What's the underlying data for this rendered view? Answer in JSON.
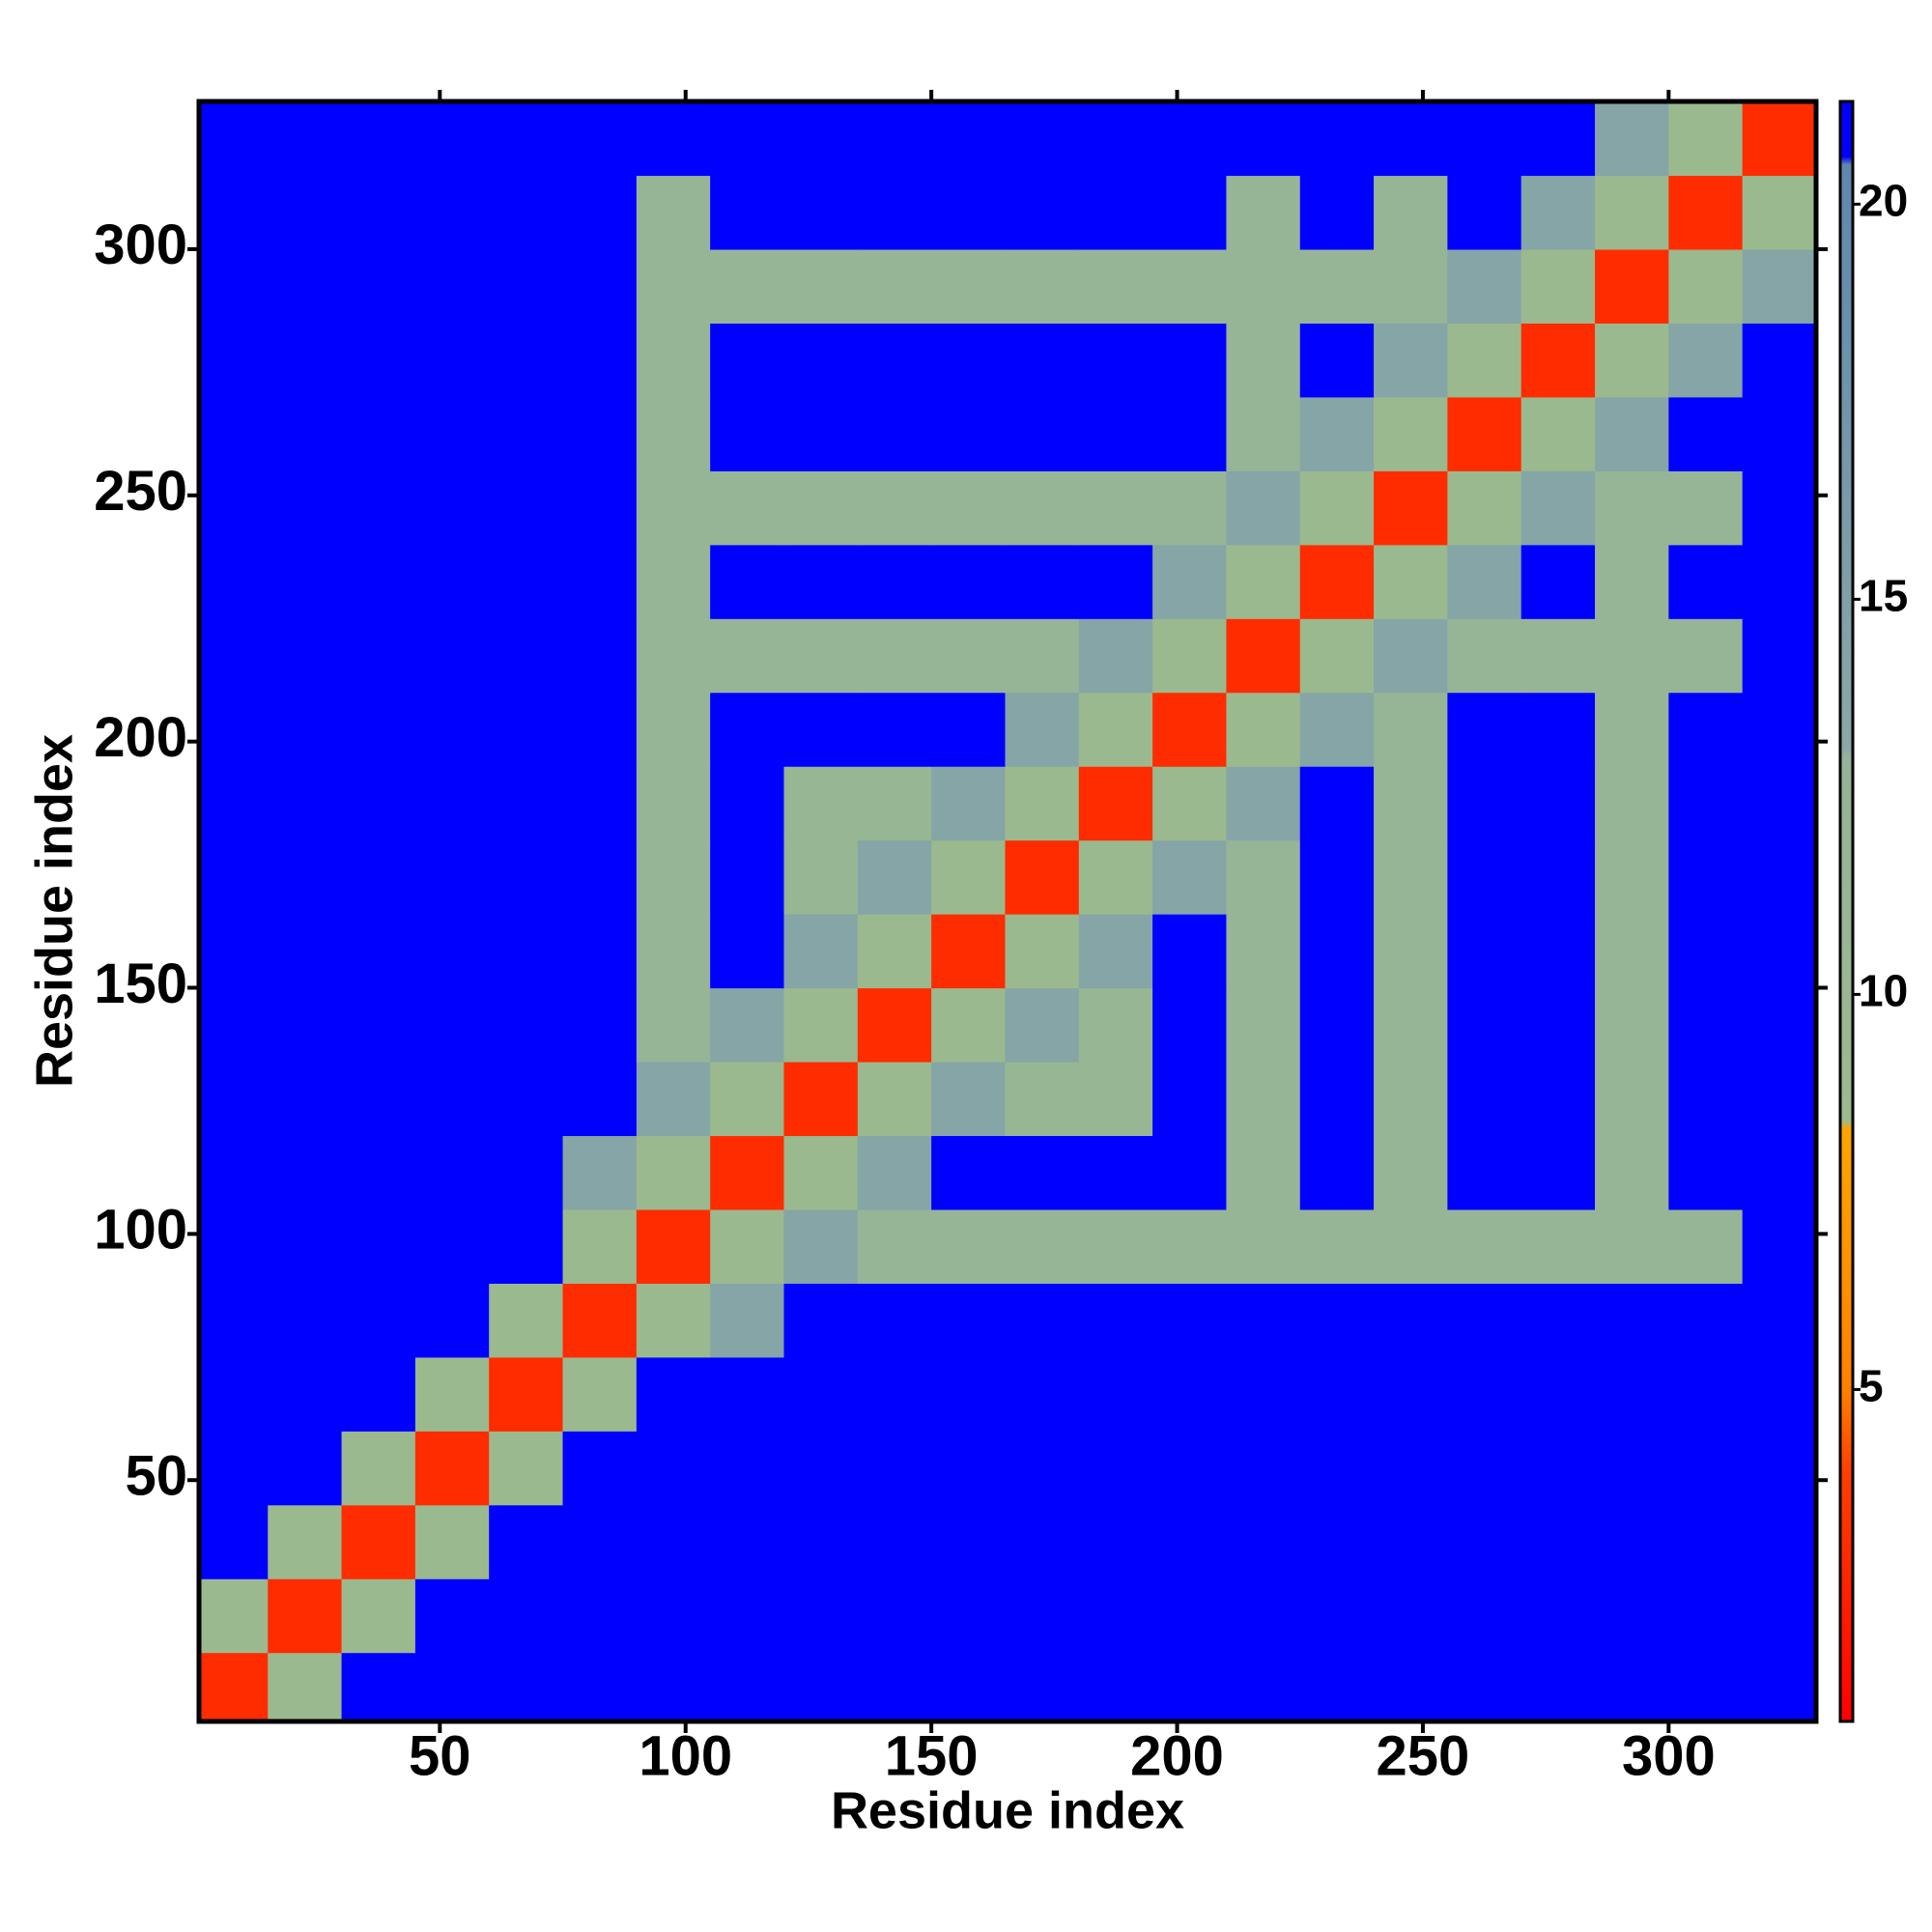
{
  "chart_data": {
    "type": "heatmap",
    "x_label": "Residue index",
    "y_label": "Residue index",
    "x_edges": [
      0,
      15,
      30,
      45,
      60,
      75,
      90,
      105,
      120,
      135,
      150,
      165,
      180,
      195,
      210,
      225,
      240,
      255,
      270,
      285,
      300,
      315,
      330
    ],
    "y_edges": [
      0,
      15,
      30,
      45,
      60,
      75,
      90,
      105,
      120,
      135,
      150,
      165,
      180,
      195,
      210,
      225,
      240,
      255,
      270,
      285,
      300,
      315,
      330
    ],
    "values": [
      [
        3,
        9,
        21,
        21,
        21,
        21,
        21,
        21,
        21,
        21,
        21,
        21,
        21,
        21,
        21,
        21,
        21,
        21,
        21,
        21,
        21,
        21
      ],
      [
        9,
        3,
        9,
        21,
        21,
        21,
        21,
        21,
        21,
        21,
        21,
        21,
        21,
        21,
        21,
        21,
        21,
        21,
        21,
        21,
        21,
        21
      ],
      [
        21,
        9,
        3,
        9,
        21,
        21,
        21,
        21,
        21,
        21,
        21,
        21,
        21,
        21,
        21,
        21,
        21,
        21,
        21,
        21,
        21,
        21
      ],
      [
        21,
        21,
        9,
        3,
        9,
        21,
        21,
        21,
        21,
        21,
        21,
        21,
        21,
        21,
        21,
        21,
        21,
        21,
        21,
        21,
        21,
        21
      ],
      [
        21,
        21,
        21,
        9,
        3,
        9,
        21,
        21,
        21,
        21,
        21,
        21,
        21,
        21,
        21,
        21,
        21,
        21,
        21,
        21,
        21,
        21
      ],
      [
        21,
        21,
        21,
        21,
        9,
        3,
        9,
        14,
        21,
        21,
        21,
        21,
        21,
        21,
        21,
        21,
        21,
        21,
        21,
        21,
        21,
        21
      ],
      [
        21,
        21,
        21,
        21,
        21,
        9,
        3,
        9,
        14,
        12,
        12,
        12,
        12,
        12,
        12,
        12,
        12,
        12,
        12,
        12,
        12,
        21
      ],
      [
        21,
        21,
        21,
        21,
        21,
        14,
        9,
        3,
        9,
        14,
        21,
        21,
        21,
        21,
        12,
        21,
        12,
        21,
        21,
        12,
        21,
        21
      ],
      [
        21,
        21,
        21,
        21,
        21,
        21,
        14,
        9,
        3,
        9,
        14,
        11,
        11,
        21,
        12,
        21,
        12,
        21,
        21,
        12,
        21,
        21
      ],
      [
        21,
        21,
        21,
        21,
        21,
        21,
        12,
        14,
        9,
        3,
        9,
        14,
        11,
        21,
        12,
        21,
        12,
        21,
        21,
        12,
        21,
        21
      ],
      [
        21,
        21,
        21,
        21,
        21,
        21,
        12,
        21,
        14,
        9,
        3,
        9,
        14,
        21,
        12,
        21,
        12,
        21,
        21,
        12,
        21,
        21
      ],
      [
        21,
        21,
        21,
        21,
        21,
        21,
        12,
        21,
        11,
        14,
        9,
        3,
        9,
        14,
        12,
        21,
        12,
        21,
        21,
        12,
        21,
        21
      ],
      [
        21,
        21,
        21,
        21,
        21,
        21,
        12,
        21,
        11,
        11,
        14,
        9,
        3,
        9,
        14,
        21,
        12,
        21,
        21,
        12,
        21,
        21
      ],
      [
        21,
        21,
        21,
        21,
        21,
        21,
        12,
        21,
        21,
        21,
        21,
        14,
        9,
        3,
        9,
        14,
        12,
        21,
        21,
        12,
        21,
        21
      ],
      [
        21,
        21,
        21,
        21,
        21,
        21,
        12,
        12,
        12,
        12,
        12,
        12,
        14,
        9,
        3,
        9,
        14,
        12,
        12,
        12,
        12,
        21
      ],
      [
        21,
        21,
        21,
        21,
        21,
        21,
        12,
        21,
        21,
        21,
        21,
        21,
        21,
        14,
        9,
        3,
        9,
        14,
        21,
        12,
        21,
        21
      ],
      [
        21,
        21,
        21,
        21,
        21,
        21,
        12,
        12,
        12,
        12,
        12,
        12,
        12,
        12,
        14,
        9,
        3,
        9,
        14,
        12,
        12,
        21
      ],
      [
        21,
        21,
        21,
        21,
        21,
        21,
        12,
        21,
        21,
        21,
        21,
        21,
        21,
        21,
        12,
        14,
        9,
        3,
        9,
        14,
        21,
        21
      ],
      [
        21,
        21,
        21,
        21,
        21,
        21,
        12,
        21,
        21,
        21,
        21,
        21,
        21,
        21,
        12,
        21,
        14,
        9,
        3,
        9,
        14,
        21
      ],
      [
        21,
        21,
        21,
        21,
        21,
        21,
        12,
        12,
        12,
        12,
        12,
        12,
        12,
        12,
        12,
        12,
        12,
        14,
        9,
        3,
        9,
        14
      ],
      [
        21,
        21,
        21,
        21,
        21,
        21,
        12,
        21,
        21,
        21,
        21,
        21,
        21,
        21,
        12,
        21,
        12,
        21,
        14,
        9,
        3,
        9
      ],
      [
        21,
        21,
        21,
        21,
        21,
        21,
        21,
        21,
        21,
        21,
        21,
        21,
        21,
        21,
        21,
        21,
        21,
        21,
        21,
        14,
        9,
        3
      ]
    ],
    "xlim": [
      1,
      330
    ],
    "ylim": [
      1,
      330
    ],
    "xticks": [
      50,
      100,
      150,
      200,
      250,
      300
    ],
    "yticks": [
      50,
      100,
      150,
      200,
      250,
      300
    ],
    "colorscale": [
      [
        0.8,
        "#ff0000"
      ],
      [
        4,
        "#ff4000"
      ],
      [
        5,
        "#ff8000"
      ],
      [
        8.3,
        "#ffa500"
      ],
      [
        8.4,
        "#9cba8c"
      ],
      [
        13,
        "#94b39a"
      ],
      [
        13.1,
        "#8aa9a6"
      ],
      [
        20.5,
        "#5f86ae"
      ],
      [
        20.6,
        "#0000ff"
      ],
      [
        21.3,
        "#0000ff"
      ]
    ],
    "clim": [
      0.8,
      21.3
    ],
    "cticks": [
      5,
      10,
      15,
      20
    ]
  }
}
